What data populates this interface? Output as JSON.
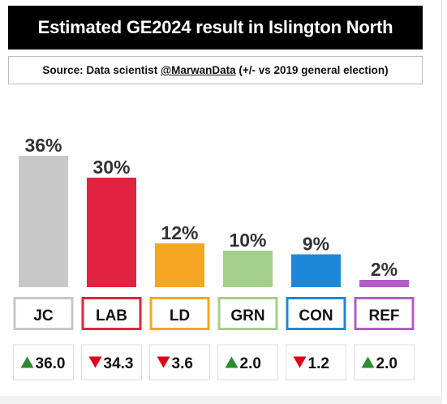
{
  "header": {
    "title": "Estimated GE2024 result in Islington North"
  },
  "source": {
    "prefix": "Source: Data scientist ",
    "handle": "@MarwanData",
    "suffix": " (+/- vs 2019 general election)"
  },
  "chart_data": {
    "type": "bar",
    "categories": [
      "JC",
      "LAB",
      "LD",
      "GRN",
      "CON",
      "REF"
    ],
    "values": [
      36,
      30,
      12,
      10,
      9,
      2
    ],
    "value_labels": [
      "36%",
      "30%",
      "12%",
      "10%",
      "9%",
      "2%"
    ],
    "changes": [
      36.0,
      -34.3,
      -3.6,
      2.0,
      -1.2,
      2.0
    ],
    "change_labels": [
      "36.0",
      "34.3",
      "3.6",
      "2.0",
      "1.2",
      "2.0"
    ],
    "colors": [
      "#c8c8c8",
      "#e0243f",
      "#f5a623",
      "#a3cf8a",
      "#1e88d8",
      "#b35cc8"
    ],
    "up_color": "#2e8b2e",
    "down_color": "#e0001a",
    "ylim": [
      0,
      36
    ]
  }
}
